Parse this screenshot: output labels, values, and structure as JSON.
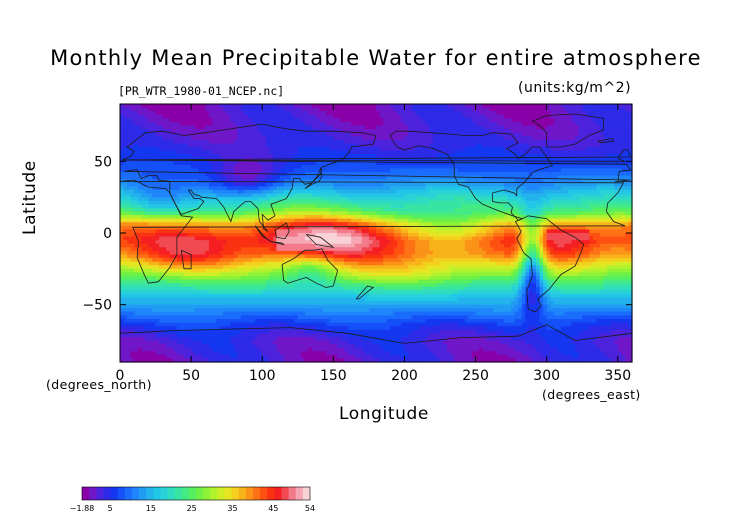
{
  "chart_data": {
    "type": "heatmap",
    "title": "Monthly Mean Precipitable Water for entire atmosphere",
    "subtitle_left": "[PR_WTR_1980-01_NCEP.nc]",
    "subtitle_right": "(units:kg/m^2)",
    "xlabel": "Longitude",
    "ylabel": "Latitude",
    "x_unit": "(degrees_east)",
    "y_unit": "(degrees_north)",
    "xlim": [
      0,
      360
    ],
    "ylim": [
      -90,
      90
    ],
    "x_ticks": [
      0,
      50,
      100,
      150,
      200,
      250,
      300,
      350
    ],
    "y_ticks": [
      -50,
      0,
      50
    ],
    "x_tick_labels": [
      "0",
      "50",
      "100",
      "150",
      "200",
      "250",
      "300",
      "350"
    ],
    "y_tick_labels": [
      "−50",
      "0",
      "50"
    ],
    "colorbar": {
      "min": -1.88,
      "max": 54,
      "tick_values": [
        -1.88,
        5,
        15,
        25,
        35,
        45,
        54
      ],
      "tick_labels": [
        "−1.88",
        "5",
        "15",
        "25",
        "35",
        "45",
        "54"
      ]
    },
    "zonal_profile": {
      "lat": [
        -90,
        -75,
        -65,
        -55,
        -45,
        -35,
        -25,
        -15,
        -5,
        5,
        15,
        25,
        35,
        45,
        55,
        65,
        75,
        90
      ],
      "value": [
        2,
        3,
        6,
        11,
        16,
        23,
        31,
        40,
        44,
        40,
        26,
        19,
        12,
        8,
        5,
        3,
        2,
        1
      ]
    },
    "maxima_regions": [
      {
        "lon": [
          110,
          165
        ],
        "lat": [
          -12,
          2
        ],
        "value": 52
      },
      {
        "lon": [
          300,
          330
        ],
        "lat": [
          -8,
          2
        ],
        "value": 48
      }
    ]
  },
  "colors": {
    "background": "#ffffff",
    "axis": "#000000",
    "coastline": "#1a1a1a",
    "palette": [
      "#8a00a8",
      "#6f17c8",
      "#4c22dc",
      "#2d2be8",
      "#1437f0",
      "#1550f8",
      "#1a6cfc",
      "#1e86fa",
      "#219cf3",
      "#23b2ec",
      "#22c6e6",
      "#28d2d8",
      "#2fdcc0",
      "#38e4a4",
      "#44ea84",
      "#55ef62",
      "#6ef046",
      "#8ef236",
      "#b0f22e",
      "#d0ee28",
      "#e8e422",
      "#f4cf1e",
      "#f8b21a",
      "#fb9318",
      "#fd7214",
      "#fe5010",
      "#fa3212",
      "#f51e22",
      "#f24a52",
      "#f27a8a",
      "#f5a8b4",
      "#f9d2d8"
    ]
  }
}
